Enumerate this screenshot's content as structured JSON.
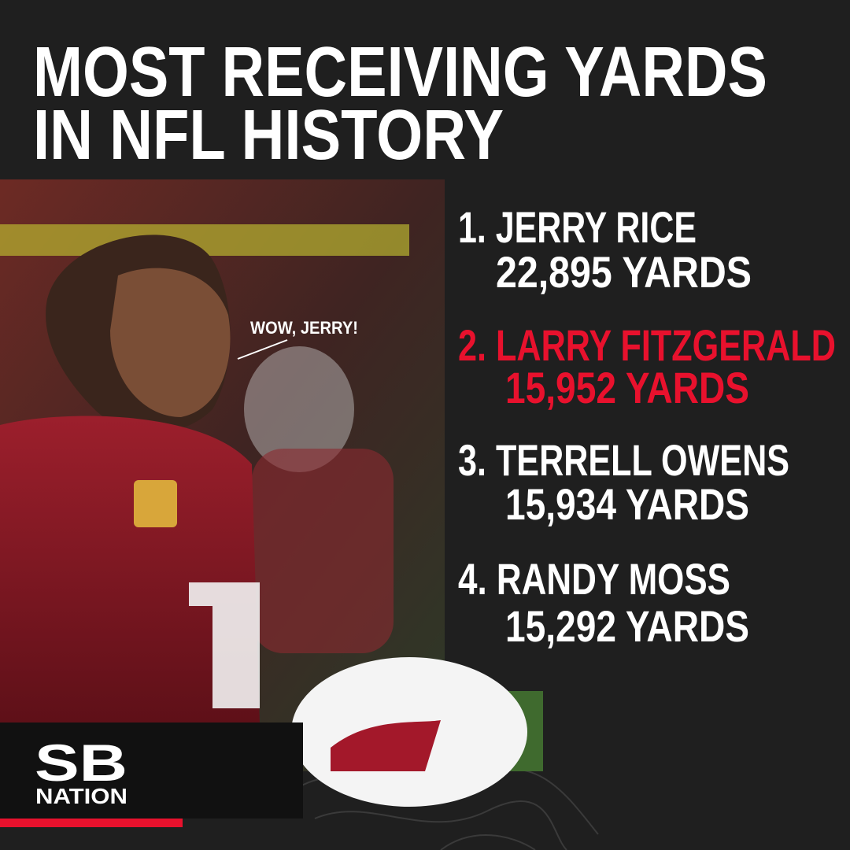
{
  "title": [
    "MOST RECEIVING YARDS",
    "IN NFL HISTORY"
  ],
  "annotation": "WOW, JERRY!",
  "list": [
    {
      "label": "1. JERRY RICE",
      "yards": "22,895 YARDS",
      "color": "#ffffff"
    },
    {
      "label": "2. LARRY FITZGERALD",
      "yards": "15,952 YARDS",
      "color": "#e8112d"
    },
    {
      "label": "3. TERRELL OWENS",
      "yards": "15,934 YARDS",
      "color": "#ffffff"
    },
    {
      "label": "4. RANDY MOSS",
      "yards": "15,292 YARDS",
      "color": "#ffffff"
    }
  ],
  "logo": {
    "top": "SB",
    "bottom": "NATION"
  }
}
